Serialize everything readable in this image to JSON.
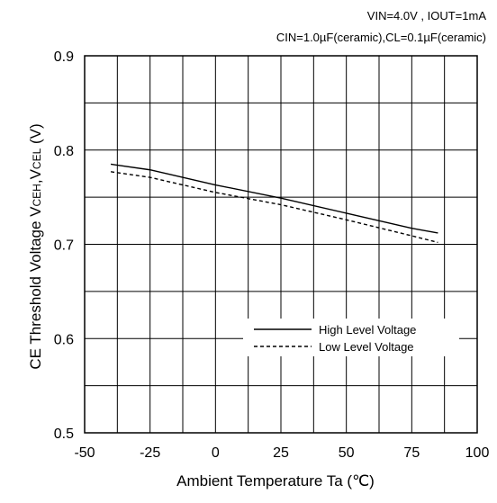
{
  "conditions": {
    "line1": "VIN=4.0V , IOUT=1mA",
    "line2": "CIN=1.0µF(ceramic),CL=0.1µF(ceramic)"
  },
  "chart_data": {
    "type": "line",
    "title": "",
    "xlabel": "Ambient Temperature Ta (℃)",
    "ylabel": {
      "prefix": "CE Threshold Voltage V",
      "sub1": "CEH",
      "middle": ",V",
      "sub2": "CEL",
      "suffix": " (V)"
    },
    "xlim": [
      -50,
      100
    ],
    "ylim": [
      0.5,
      0.9
    ],
    "xticks": [
      "-50",
      "-25",
      "0",
      "25",
      "50",
      "75",
      "100"
    ],
    "yticks": [
      "0.5",
      "0.6",
      "0.7",
      "0.8",
      "0.9"
    ],
    "grid": true,
    "legend_position": "lower-right",
    "series": [
      {
        "name": "High Level Voltage",
        "style": "solid",
        "color": "#000000",
        "x": [
          -40,
          -25,
          0,
          25,
          50,
          75,
          85
        ],
        "y": [
          0.785,
          0.779,
          0.763,
          0.749,
          0.733,
          0.717,
          0.712
        ]
      },
      {
        "name": "Low Level Voltage",
        "style": "dashed",
        "color": "#000000",
        "x": [
          -40,
          -25,
          0,
          25,
          50,
          75,
          85
        ],
        "y": [
          0.777,
          0.771,
          0.755,
          0.742,
          0.726,
          0.709,
          0.702
        ]
      }
    ]
  }
}
